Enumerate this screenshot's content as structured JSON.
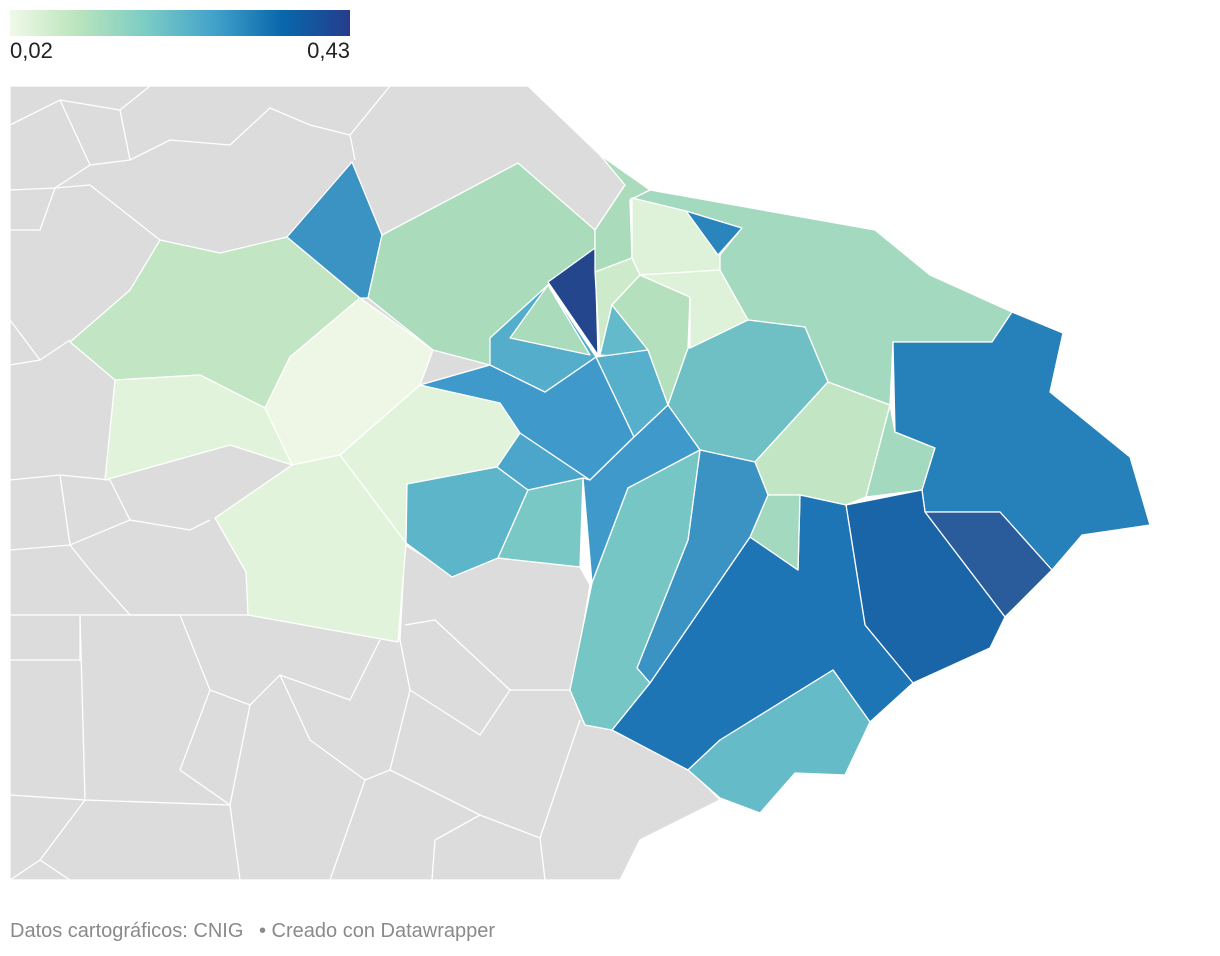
{
  "legend": {
    "min_label": "0,02",
    "max_label": "0,43",
    "min_value": 0.02,
    "max_value": 0.43,
    "gradient": [
      "#f0f9e8",
      "#bae4bc",
      "#7bccc4",
      "#43a2ca",
      "#0868ac",
      "#253d8b"
    ]
  },
  "colors": {
    "no_data": "#dcdcdc",
    "border": "#ffffff"
  },
  "footer": {
    "source": "Datos cartográficos: CNIG",
    "credit": "• Creado con Datawrapper"
  }
}
